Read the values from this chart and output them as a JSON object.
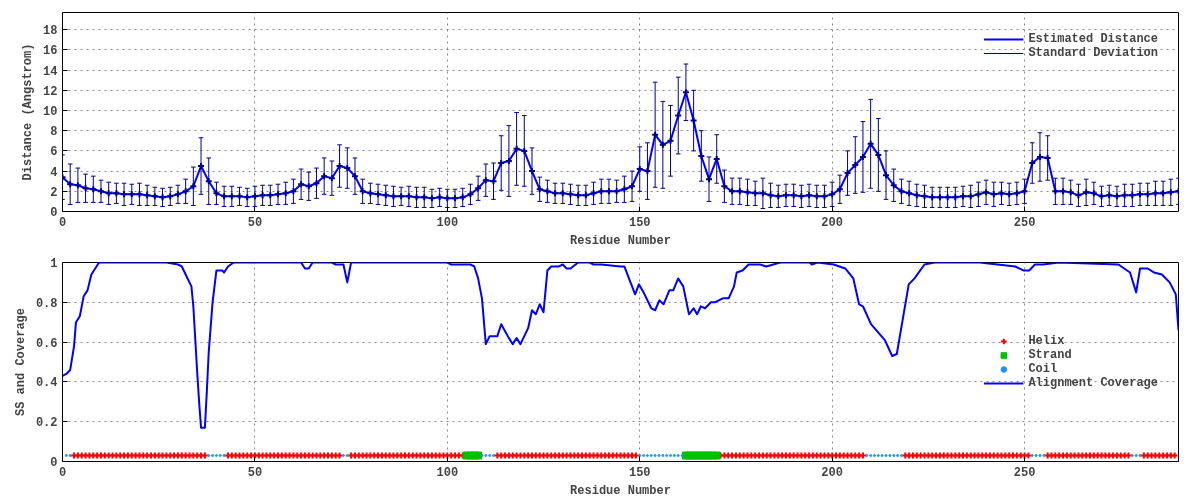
{
  "chart_data": [
    {
      "type": "line",
      "xlabel": "Residue Number",
      "ylabel": "Distance (Angstrom)",
      "xlim": [
        0,
        290
      ],
      "ylim": [
        0,
        19.7
      ],
      "xticks": [
        0,
        50,
        100,
        150,
        200,
        250
      ],
      "yticks": [
        0,
        2,
        4,
        6,
        8,
        10,
        12,
        14,
        16,
        18
      ],
      "grid": true,
      "legend": "top right",
      "x": [
        0,
        2,
        4,
        6,
        8,
        10,
        12,
        14,
        16,
        18,
        20,
        22,
        24,
        26,
        28,
        30,
        32,
        34,
        36,
        38,
        40,
        42,
        44,
        46,
        48,
        50,
        52,
        54,
        56,
        58,
        60,
        62,
        64,
        66,
        68,
        70,
        72,
        74,
        76,
        78,
        80,
        82,
        84,
        86,
        88,
        90,
        92,
        94,
        96,
        98,
        100,
        102,
        104,
        106,
        108,
        110,
        112,
        114,
        116,
        118,
        120,
        122,
        124,
        126,
        128,
        130,
        132,
        134,
        136,
        138,
        140,
        142,
        144,
        146,
        148,
        150,
        152,
        154,
        156,
        158,
        160,
        162,
        164,
        166,
        168,
        170,
        172,
        174,
        176,
        178,
        180,
        182,
        184,
        186,
        188,
        190,
        192,
        194,
        196,
        198,
        200,
        202,
        204,
        206,
        208,
        210,
        212,
        214,
        216,
        218,
        220,
        222,
        224,
        226,
        228,
        230,
        232,
        234,
        236,
        238,
        240,
        242,
        244,
        246,
        248,
        250,
        252,
        254,
        256,
        258,
        260,
        262,
        264,
        266,
        268,
        270,
        272,
        274,
        276,
        278,
        280,
        282,
        284,
        286,
        288,
        290
      ],
      "series": [
        {
          "name": "Estimated Distance",
          "color": "#0000ff",
          "values": [
            3.4,
            2.7,
            2.6,
            2.3,
            2.2,
            2.0,
            1.8,
            1.8,
            1.7,
            1.7,
            1.7,
            1.6,
            1.5,
            1.4,
            1.5,
            1.7,
            2.0,
            2.5,
            4.5,
            3.0,
            1.8,
            1.5,
            1.5,
            1.5,
            1.4,
            1.5,
            1.6,
            1.6,
            1.7,
            1.8,
            2.0,
            2.7,
            2.5,
            2.8,
            3.5,
            3.3,
            4.5,
            4.3,
            3.5,
            2.0,
            1.8,
            1.7,
            1.6,
            1.5,
            1.5,
            1.5,
            1.4,
            1.4,
            1.3,
            1.4,
            1.3,
            1.3,
            1.4,
            1.7,
            2.3,
            3.1,
            3.0,
            4.8,
            5.0,
            6.2,
            6.0,
            4.0,
            2.2,
            2.0,
            1.8,
            1.8,
            1.7,
            1.6,
            1.6,
            1.8,
            2.0,
            2.0,
            2.0,
            2.2,
            2.5,
            4.2,
            4.0,
            7.6,
            6.6,
            7.0,
            9.5,
            11.8,
            9.0,
            5.5,
            3.2,
            5.2,
            2.5,
            2.0,
            2.0,
            1.9,
            1.8,
            1.8,
            1.6,
            1.5,
            1.6,
            1.6,
            1.5,
            1.6,
            1.5,
            1.5,
            1.7,
            2.2,
            3.8,
            4.6,
            5.4,
            6.7,
            5.6,
            3.6,
            2.6,
            2.0,
            1.8,
            1.6,
            1.5,
            1.4,
            1.4,
            1.4,
            1.4,
            1.5,
            1.5,
            1.7,
            1.9,
            1.7,
            1.8,
            1.7,
            1.8,
            2.0,
            4.8,
            5.4,
            5.3,
            2.0,
            2.0,
            1.9,
            1.6,
            1.9,
            1.8,
            1.5,
            1.6,
            1.5,
            1.6,
            1.6,
            1.7,
            1.7,
            1.8,
            1.8,
            1.9,
            2.0
          ]
        },
        {
          "name": "Standard Deviation",
          "type": "scatter",
          "marker": "cross",
          "color": "#000090",
          "values": [
            3.4,
            2.7,
            2.6,
            2.3,
            2.2,
            2.0,
            1.8,
            1.8,
            1.7,
            1.7,
            1.7,
            1.6,
            1.5,
            1.4,
            1.5,
            1.7,
            2.0,
            2.5,
            4.5,
            3.0,
            1.8,
            1.5,
            1.5,
            1.5,
            1.4,
            1.5,
            1.6,
            1.6,
            1.7,
            1.8,
            2.0,
            2.7,
            2.5,
            2.8,
            3.5,
            3.3,
            4.5,
            4.3,
            3.5,
            2.0,
            1.8,
            1.7,
            1.6,
            1.5,
            1.5,
            1.5,
            1.4,
            1.4,
            1.3,
            1.4,
            1.3,
            1.3,
            1.4,
            1.7,
            2.3,
            3.1,
            3.0,
            4.8,
            5.0,
            6.2,
            6.0,
            4.0,
            2.2,
            2.0,
            1.8,
            1.8,
            1.7,
            1.6,
            1.6,
            1.8,
            2.0,
            2.0,
            2.0,
            2.2,
            2.5,
            4.2,
            4.0,
            7.6,
            6.6,
            7.0,
            9.5,
            11.8,
            9.0,
            5.5,
            3.2,
            5.2,
            2.5,
            2.0,
            2.0,
            1.9,
            1.8,
            1.8,
            1.6,
            1.5,
            1.6,
            1.6,
            1.5,
            1.6,
            1.5,
            1.5,
            1.7,
            2.2,
            3.8,
            4.6,
            5.4,
            6.7,
            5.6,
            3.6,
            2.6,
            2.0,
            1.8,
            1.6,
            1.5,
            1.4,
            1.4,
            1.4,
            1.4,
            1.5,
            1.5,
            1.7,
            1.9,
            1.7,
            1.8,
            1.7,
            1.8,
            2.0,
            4.8,
            5.4,
            5.3,
            2.0,
            2.0,
            1.9,
            1.6,
            1.9,
            1.8,
            1.5,
            1.6,
            1.5,
            1.6,
            1.6,
            1.7,
            1.7,
            1.8,
            1.8,
            1.9,
            2.0
          ],
          "errors": [
            2.2,
            2.0,
            1.7,
            1.4,
            1.3,
            1.1,
            1.1,
            1.0,
            1.1,
            1.0,
            1.1,
            1.0,
            0.9,
            0.9,
            0.9,
            0.9,
            1.2,
            1.9,
            2.8,
            2.3,
            1.1,
            1.0,
            1.0,
            0.9,
            0.9,
            1.0,
            1.0,
            1.0,
            1.0,
            1.1,
            1.2,
            1.5,
            1.4,
            1.5,
            1.8,
            1.7,
            2.1,
            2.0,
            1.8,
            1.2,
            1.0,
            1.0,
            1.0,
            1.0,
            0.9,
            1.0,
            1.0,
            1.0,
            0.9,
            0.9,
            0.9,
            0.9,
            0.9,
            1.0,
            1.2,
            1.6,
            1.8,
            2.7,
            3.5,
            3.6,
            3.5,
            2.3,
            1.2,
            1.1,
            1.0,
            1.0,
            1.0,
            1.0,
            1.0,
            1.1,
            1.2,
            1.2,
            1.1,
            1.3,
            1.5,
            2.2,
            2.8,
            5.2,
            4.3,
            3.5,
            3.8,
            2.8,
            3.0,
            2.5,
            2.2,
            2.4,
            1.6,
            1.3,
            1.3,
            1.3,
            1.2,
            1.5,
            1.2,
            1.1,
            1.1,
            1.1,
            1.1,
            1.1,
            1.1,
            1.1,
            1.2,
            1.4,
            2.2,
            2.8,
            3.5,
            4.4,
            3.6,
            2.4,
            1.6,
            1.2,
            1.2,
            1.1,
            1.1,
            1.0,
            1.0,
            1.0,
            1.0,
            1.0,
            1.1,
            1.2,
            1.2,
            1.2,
            1.1,
            1.1,
            1.1,
            1.2,
            2.0,
            2.4,
            2.2,
            1.3,
            1.3,
            1.2,
            1.1,
            1.3,
            1.1,
            1.0,
            1.0,
            1.0,
            1.1,
            1.1,
            1.1,
            1.1,
            1.2,
            1.2,
            1.3,
            1.3
          ]
        }
      ]
    },
    {
      "type": "line",
      "xlabel": "Residue Number",
      "ylabel": "SS and Coverage",
      "xlim": [
        0,
        290
      ],
      "ylim": [
        0,
        1
      ],
      "xticks": [
        0,
        50,
        100,
        150,
        200,
        250
      ],
      "yticks": [
        0,
        0.2,
        0.4,
        0.6,
        0.8,
        1
      ],
      "grid": true,
      "legend": "right",
      "series": [
        {
          "name": "Helix",
          "type": "scatter",
          "marker": "cross",
          "color": "#ff0000",
          "x": [
            3,
            4,
            5,
            6,
            7,
            8,
            9,
            10,
            11,
            12,
            13,
            14,
            15,
            16,
            17,
            18,
            19,
            20,
            21,
            22,
            23,
            24,
            25,
            26,
            27,
            28,
            29,
            30,
            31,
            32,
            33,
            34,
            35,
            36,
            37,
            43,
            44,
            45,
            46,
            47,
            48,
            49,
            50,
            51,
            52,
            53,
            54,
            55,
            56,
            57,
            58,
            59,
            60,
            61,
            62,
            63,
            64,
            65,
            66,
            67,
            68,
            69,
            70,
            71,
            72,
            75,
            76,
            77,
            78,
            79,
            80,
            81,
            82,
            83,
            84,
            85,
            86,
            87,
            88,
            89,
            90,
            91,
            92,
            93,
            94,
            95,
            96,
            97,
            98,
            99,
            100,
            101,
            102,
            103,
            104,
            113,
            114,
            115,
            116,
            117,
            118,
            119,
            120,
            121,
            122,
            123,
            124,
            125,
            126,
            127,
            128,
            129,
            130,
            131,
            132,
            133,
            134,
            135,
            136,
            137,
            138,
            139,
            140,
            141,
            142,
            143,
            144,
            145,
            146,
            147,
            148,
            149,
            171,
            172,
            173,
            174,
            175,
            176,
            177,
            178,
            179,
            180,
            181,
            182,
            183,
            184,
            185,
            186,
            187,
            188,
            189,
            190,
            191,
            192,
            193,
            194,
            195,
            196,
            197,
            198,
            199,
            200,
            201,
            202,
            203,
            204,
            205,
            206,
            207,
            208,
            219,
            220,
            221,
            222,
            223,
            224,
            225,
            226,
            227,
            228,
            229,
            230,
            231,
            232,
            233,
            234,
            235,
            236,
            237,
            238,
            239,
            240,
            241,
            242,
            243,
            244,
            245,
            246,
            247,
            248,
            249,
            250,
            251,
            256,
            257,
            258,
            259,
            260,
            261,
            262,
            263,
            264,
            265,
            266,
            267,
            268,
            269,
            270,
            271,
            272,
            273,
            274,
            275,
            276,
            277,
            281,
            282,
            283,
            284,
            285,
            286,
            287,
            288,
            289
          ],
          "values": [
            0.03,
            0.03,
            0.03,
            0.03,
            0.03,
            0.03,
            0.03,
            0.03,
            0.03,
            0.03,
            0.03,
            0.03,
            0.03,
            0.03,
            0.03,
            0.03,
            0.03,
            0.03,
            0.03,
            0.03,
            0.03,
            0.03,
            0.03,
            0.03,
            0.03,
            0.03,
            0.03,
            0.03,
            0.03,
            0.03,
            0.03,
            0.03,
            0.03,
            0.03,
            0.03,
            0.03,
            0.03,
            0.03,
            0.03,
            0.03,
            0.03,
            0.03,
            0.03,
            0.03,
            0.03,
            0.03,
            0.03,
            0.03,
            0.03,
            0.03,
            0.03,
            0.03,
            0.03,
            0.03,
            0.03,
            0.03,
            0.03,
            0.03,
            0.03,
            0.03,
            0.03,
            0.03,
            0.03,
            0.03,
            0.03,
            0.03,
            0.03,
            0.03,
            0.03,
            0.03,
            0.03,
            0.03,
            0.03,
            0.03,
            0.03,
            0.03,
            0.03,
            0.03,
            0.03,
            0.03,
            0.03,
            0.03,
            0.03,
            0.03,
            0.03,
            0.03,
            0.03,
            0.03,
            0.03,
            0.03,
            0.03,
            0.03,
            0.03,
            0.03,
            0.03,
            0.03,
            0.03,
            0.03,
            0.03,
            0.03,
            0.03,
            0.03,
            0.03,
            0.03,
            0.03,
            0.03,
            0.03,
            0.03,
            0.03,
            0.03,
            0.03,
            0.03,
            0.03,
            0.03,
            0.03,
            0.03,
            0.03,
            0.03,
            0.03,
            0.03,
            0.03,
            0.03,
            0.03,
            0.03,
            0.03,
            0.03,
            0.03,
            0.03,
            0.03,
            0.03,
            0.03,
            0.03,
            0.03,
            0.03,
            0.03,
            0.03,
            0.03,
            0.03,
            0.03,
            0.03,
            0.03,
            0.03,
            0.03,
            0.03,
            0.03,
            0.03,
            0.03,
            0.03,
            0.03,
            0.03,
            0.03,
            0.03,
            0.03,
            0.03,
            0.03,
            0.03,
            0.03,
            0.03,
            0.03,
            0.03,
            0.03,
            0.03,
            0.03,
            0.03,
            0.03,
            0.03,
            0.03,
            0.03,
            0.03,
            0.03,
            0.03,
            0.03,
            0.03,
            0.03,
            0.03,
            0.03,
            0.03,
            0.03,
            0.03,
            0.03,
            0.03,
            0.03,
            0.03,
            0.03,
            0.03,
            0.03,
            0.03,
            0.03,
            0.03,
            0.03,
            0.03,
            0.03,
            0.03,
            0.03,
            0.03,
            0.03,
            0.03,
            0.03,
            0.03,
            0.03,
            0.03,
            0.03,
            0.03,
            0.03,
            0.03,
            0.03,
            0.03,
            0.03,
            0.03,
            0.03,
            0.03,
            0.03,
            0.03,
            0.03,
            0.03,
            0.03,
            0.03,
            0.03,
            0.03,
            0.03,
            0.03,
            0.03,
            0.03,
            0.03,
            0.03,
            0.03,
            0.03,
            0.03,
            0.03,
            0.03,
            0.03,
            0.03,
            0.03,
            0.03
          ]
        },
        {
          "name": "Strand",
          "type": "scatter",
          "marker": "square",
          "color": "#00c000",
          "x": [
            105,
            106,
            107,
            108,
            162,
            163,
            164,
            165,
            166,
            167,
            168,
            169,
            170
          ],
          "values": [
            0.03,
            0.03,
            0.03,
            0.03,
            0.03,
            0.03,
            0.03,
            0.03,
            0.03,
            0.03,
            0.03,
            0.03,
            0.03
          ]
        },
        {
          "name": "Coil",
          "type": "scatter",
          "marker": "circle",
          "color": "#1e90ff",
          "x": [
            1,
            2,
            38,
            39,
            40,
            41,
            42,
            73,
            74,
            109,
            110,
            111,
            112,
            150,
            151,
            152,
            153,
            154,
            155,
            156,
            157,
            158,
            159,
            160,
            161,
            209,
            210,
            211,
            212,
            213,
            214,
            215,
            216,
            217,
            218,
            252,
            253,
            254,
            255,
            278,
            279,
            280
          ],
          "values": [
            0.03,
            0.03,
            0.03,
            0.03,
            0.03,
            0.03,
            0.03,
            0.03,
            0.03,
            0.03,
            0.03,
            0.03,
            0.03,
            0.03,
            0.03,
            0.03,
            0.03,
            0.03,
            0.03,
            0.03,
            0.03,
            0.03,
            0.03,
            0.03,
            0.03,
            0.03,
            0.03,
            0.03,
            0.03,
            0.03,
            0.03,
            0.03,
            0.03,
            0.03,
            0.03,
            0.03,
            0.03,
            0.03,
            0.03,
            0.03,
            0.03,
            0.03
          ]
        },
        {
          "name": "Alignment Coverage",
          "color": "#0000ff",
          "x": [
            0,
            1,
            2,
            3,
            3.5,
            4.5,
            5.5,
            6.5,
            7.5,
            8.5,
            9.5,
            27,
            30,
            31,
            32,
            33.5,
            34,
            35,
            35.5,
            36,
            37,
            37.5,
            38,
            39,
            40,
            41.5,
            42,
            43,
            44.5,
            62,
            63,
            64,
            65,
            70,
            71,
            73,
            74,
            75,
            100,
            101,
            106,
            107,
            108,
            109,
            110,
            111,
            113,
            114,
            116,
            117,
            118,
            119,
            121,
            122,
            123,
            124,
            125,
            126,
            127,
            129,
            130,
            131,
            132,
            134,
            137,
            138,
            140,
            145,
            146,
            148.8,
            149.8,
            151,
            153,
            154,
            155.1,
            156.2,
            157.7,
            158.7,
            160,
            161.3,
            162.8,
            164,
            164.9,
            165.9,
            167,
            168.5,
            169.5,
            171.6,
            173.1,
            174.5,
            175.2,
            176.7,
            178.3,
            181.3,
            182.9,
            186.5,
            194.2,
            194.7,
            196.2,
            200.4,
            203.4,
            205.5,
            207,
            208,
            210.1,
            213.7,
            215.6,
            216.8,
            219.9,
            221.4,
            224,
            226.6,
            238.4,
            247.6,
            249.7,
            251.2,
            252.7,
            254.8,
            258.9,
            274.4,
            277.4,
            279,
            280,
            282,
            283.6,
            285.7,
            287.7,
            289.3,
            290
          ],
          "values": [
            0.43,
            0.44,
            0.46,
            0.58,
            0.7,
            0.73,
            0.83,
            0.86,
            0.94,
            0.97,
            1.0,
            1.0,
            0.99,
            0.98,
            0.94,
            0.88,
            0.78,
            0.45,
            0.3,
            0.17,
            0.17,
            0.35,
            0.55,
            0.8,
            0.96,
            0.96,
            0.95,
            0.98,
            1.0,
            1.0,
            0.97,
            0.97,
            1.0,
            1.0,
            0.99,
            0.99,
            0.9,
            1.0,
            1.0,
            0.99,
            0.99,
            0.98,
            0.92,
            0.82,
            0.59,
            0.63,
            0.63,
            0.69,
            0.62,
            0.59,
            0.62,
            0.59,
            0.67,
            0.76,
            0.74,
            0.79,
            0.75,
            0.96,
            0.98,
            0.98,
            0.99,
            0.97,
            0.97,
            1.0,
            1.0,
            0.99,
            0.99,
            0.98,
            0.98,
            0.84,
            0.89,
            0.85,
            0.77,
            0.76,
            0.81,
            0.79,
            0.86,
            0.86,
            0.92,
            0.88,
            0.74,
            0.77,
            0.74,
            0.78,
            0.77,
            0.8,
            0.8,
            0.82,
            0.82,
            0.88,
            0.95,
            0.96,
            0.99,
            0.99,
            0.98,
            1.0,
            1.0,
            0.99,
            1.0,
            0.99,
            0.97,
            0.92,
            0.79,
            0.78,
            0.69,
            0.61,
            0.53,
            0.54,
            0.89,
            0.92,
            0.99,
            1.0,
            1.0,
            0.98,
            0.96,
            0.96,
            0.99,
            0.99,
            1.0,
            0.99,
            0.95,
            0.85,
            0.97,
            0.97,
            0.95,
            0.94,
            0.9,
            0.84,
            0.66
          ]
        }
      ]
    }
  ]
}
